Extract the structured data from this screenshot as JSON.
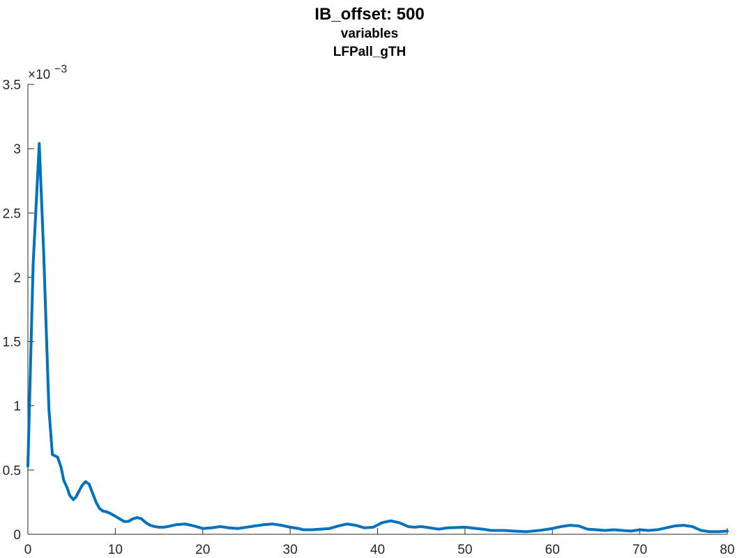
{
  "chart_data": {
    "type": "line",
    "title": "IB_offset: 500",
    "subtitle_lines": [
      "variables",
      "LFPall_gTH"
    ],
    "xlabel": "",
    "ylabel": "",
    "xlim": [
      0,
      80
    ],
    "ylim": [
      0,
      0.0035
    ],
    "y_exponent_label": "×10",
    "y_exponent_power": "−3",
    "grid": false,
    "legend": "none",
    "x_ticks": [
      {
        "value": 0,
        "label": "0"
      },
      {
        "value": 10,
        "label": "10"
      },
      {
        "value": 20,
        "label": "20"
      },
      {
        "value": 30,
        "label": "30"
      },
      {
        "value": 40,
        "label": "40"
      },
      {
        "value": 50,
        "label": "50"
      },
      {
        "value": 60,
        "label": "60"
      },
      {
        "value": 70,
        "label": "70"
      },
      {
        "value": 80,
        "label": "80"
      }
    ],
    "y_ticks": [
      {
        "value": 0,
        "label": "0"
      },
      {
        "value": 0.0005,
        "label": "0.5"
      },
      {
        "value": 0.001,
        "label": "1"
      },
      {
        "value": 0.0015,
        "label": "1.5"
      },
      {
        "value": 0.002,
        "label": "2"
      },
      {
        "value": 0.0025,
        "label": "2.5"
      },
      {
        "value": 0.003,
        "label": "3"
      },
      {
        "value": 0.0035,
        "label": "3.5"
      }
    ],
    "series": [
      {
        "color": "#0072BD",
        "x": [
          0,
          0.6,
          1.3,
          1.8,
          2.4,
          2.8,
          3.1,
          3.4,
          3.8,
          4.1,
          4.5,
          4.8,
          5.2,
          5.5,
          5.8,
          6.2,
          6.6,
          7.0,
          7.4,
          7.8,
          8.2,
          8.6,
          9.0,
          9.5,
          10.0,
          10.5,
          11.0,
          11.5,
          12.0,
          12.5,
          13.0,
          13.5,
          14.0,
          14.5,
          15.0,
          15.5,
          16.0,
          17.0,
          18.0,
          19.0,
          20.0,
          21.0,
          22.0,
          23.0,
          24.0,
          25.0,
          26.0,
          27.0,
          28.0,
          29.0,
          30.0,
          31.0,
          31.5,
          32.5,
          33.5,
          34.5,
          35.5,
          36.5,
          37.5,
          38.5,
          39.5,
          40.5,
          41.5,
          42.5,
          43.5,
          44.2,
          45.0,
          46.0,
          47.0,
          48.0,
          50.0,
          52.0,
          53.0,
          54.5,
          55.5,
          57.0,
          58.5,
          60.0,
          61.0,
          62.0,
          63.0,
          64.0,
          65.0,
          66.0,
          67.0,
          68.0,
          69.0,
          70.0,
          71.0,
          72.0,
          73.0,
          74.0,
          75.0,
          76.0,
          77.0,
          78.0,
          79.0,
          80.0
        ],
        "values": [
          0.00053,
          0.0021,
          0.00304,
          0.0022,
          0.00098,
          0.00062,
          0.00061,
          0.0006,
          0.00052,
          0.00042,
          0.00036,
          0.0003,
          0.00027,
          0.00029,
          0.00033,
          0.00038,
          0.00041,
          0.00039,
          0.00032,
          0.00025,
          0.0002,
          0.00018,
          0.000175,
          0.00016,
          0.00014,
          0.00012,
          0.0001,
          0.0001,
          0.00012,
          0.00013,
          0.00012,
          9e-05,
          7e-05,
          6e-05,
          5.5e-05,
          5.5e-05,
          6e-05,
          7.5e-05,
          8e-05,
          6.5e-05,
          4.5e-05,
          5e-05,
          6e-05,
          5e-05,
          4.5e-05,
          5.5e-05,
          6.5e-05,
          7.5e-05,
          8e-05,
          7e-05,
          5.5e-05,
          4.5e-05,
          3.5e-05,
          3.5e-05,
          4e-05,
          4.5e-05,
          6.5e-05,
          8e-05,
          7e-05,
          5e-05,
          5.5e-05,
          9e-05,
          0.000105,
          9e-05,
          6e-05,
          5.5e-05,
          6e-05,
          5e-05,
          4e-05,
          5e-05,
          5.5e-05,
          4e-05,
          3e-05,
          3e-05,
          2.5e-05,
          2e-05,
          3e-05,
          4.5e-05,
          6e-05,
          7e-05,
          6.5e-05,
          4e-05,
          3.5e-05,
          3e-05,
          3.5e-05,
          3e-05,
          2.5e-05,
          3.5e-05,
          3e-05,
          3.5e-05,
          5e-05,
          6.5e-05,
          7e-05,
          6e-05,
          3e-05,
          2e-05,
          2e-05,
          2.5e-05
        ]
      }
    ]
  }
}
